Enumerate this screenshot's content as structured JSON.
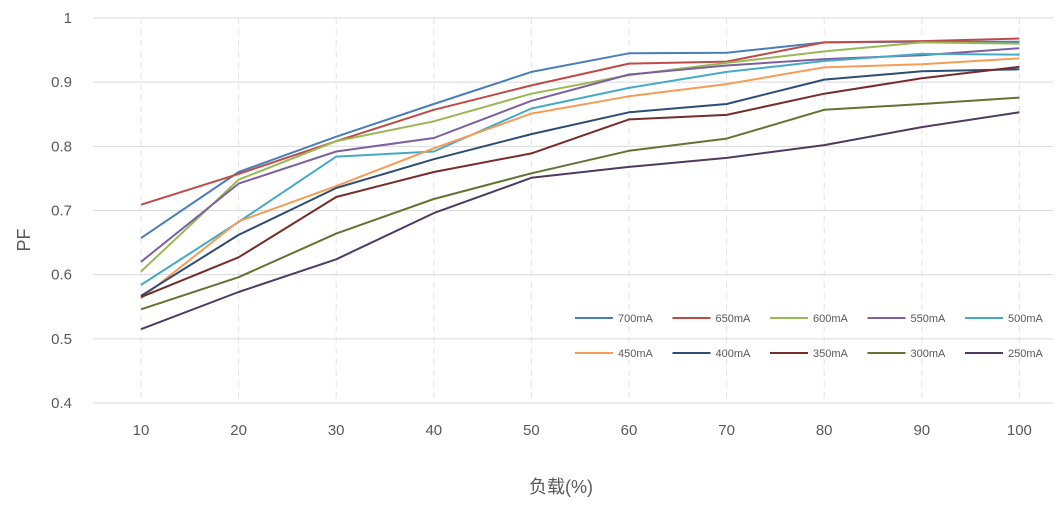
{
  "chart_data": {
    "type": "line",
    "title": "",
    "xlabel": "负载(%)",
    "ylabel": "PF",
    "x": [
      10,
      20,
      30,
      40,
      50,
      60,
      70,
      80,
      90,
      100
    ],
    "ylim": [
      0.4,
      1.0
    ],
    "yticks": [
      0.4,
      0.5,
      0.6,
      0.7,
      0.8,
      0.9,
      1.0
    ],
    "ytick_labels": [
      "0.4",
      "0.5",
      "0.6",
      "0.7",
      "0.8",
      "0.9",
      "1"
    ],
    "xtick_labels": [
      "10",
      "20",
      "30",
      "40",
      "50",
      "60",
      "70",
      "80",
      "90",
      "100"
    ],
    "grid": {
      "horizontal": true,
      "vertical_dashed": true
    },
    "legend_position": "bottom-right",
    "series": [
      {
        "name": "700mA",
        "color": "#4a7ebb",
        "values": [
          0.657,
          0.76,
          0.815,
          0.866,
          0.916,
          0.945,
          0.946,
          0.962,
          0.963,
          0.963
        ]
      },
      {
        "name": "650mA",
        "color": "#be4b48",
        "values": [
          0.709,
          0.757,
          0.808,
          0.857,
          0.895,
          0.929,
          0.932,
          0.962,
          0.964,
          0.968
        ]
      },
      {
        "name": "600mA",
        "color": "#98b954",
        "values": [
          0.605,
          0.748,
          0.808,
          0.839,
          0.882,
          0.911,
          0.93,
          0.948,
          0.962,
          0.96
        ]
      },
      {
        "name": "550mA",
        "color": "#7d60a0",
        "values": [
          0.62,
          0.742,
          0.792,
          0.813,
          0.871,
          0.912,
          0.926,
          0.936,
          0.942,
          0.953
        ]
      },
      {
        "name": "500mA",
        "color": "#46aac5",
        "values": [
          0.584,
          0.682,
          0.784,
          0.792,
          0.859,
          0.891,
          0.916,
          0.933,
          0.944,
          0.943
        ]
      },
      {
        "name": "450mA",
        "color": "#f59d56",
        "values": [
          0.563,
          0.683,
          0.738,
          0.797,
          0.851,
          0.878,
          0.897,
          0.923,
          0.928,
          0.937
        ]
      },
      {
        "name": "400mA",
        "color": "#2c4d75",
        "values": [
          0.567,
          0.662,
          0.735,
          0.78,
          0.819,
          0.853,
          0.866,
          0.904,
          0.917,
          0.92
        ]
      },
      {
        "name": "350mA",
        "color": "#772c2a",
        "values": [
          0.565,
          0.627,
          0.721,
          0.76,
          0.789,
          0.842,
          0.849,
          0.882,
          0.906,
          0.924
        ]
      },
      {
        "name": "300mA",
        "color": "#5f7530",
        "values": [
          0.546,
          0.596,
          0.664,
          0.718,
          0.758,
          0.793,
          0.812,
          0.857,
          0.866,
          0.876
        ]
      },
      {
        "name": "250mA",
        "color": "#4d3b62",
        "values": [
          0.515,
          0.573,
          0.624,
          0.696,
          0.751,
          0.768,
          0.782,
          0.802,
          0.83,
          0.853
        ]
      }
    ]
  }
}
